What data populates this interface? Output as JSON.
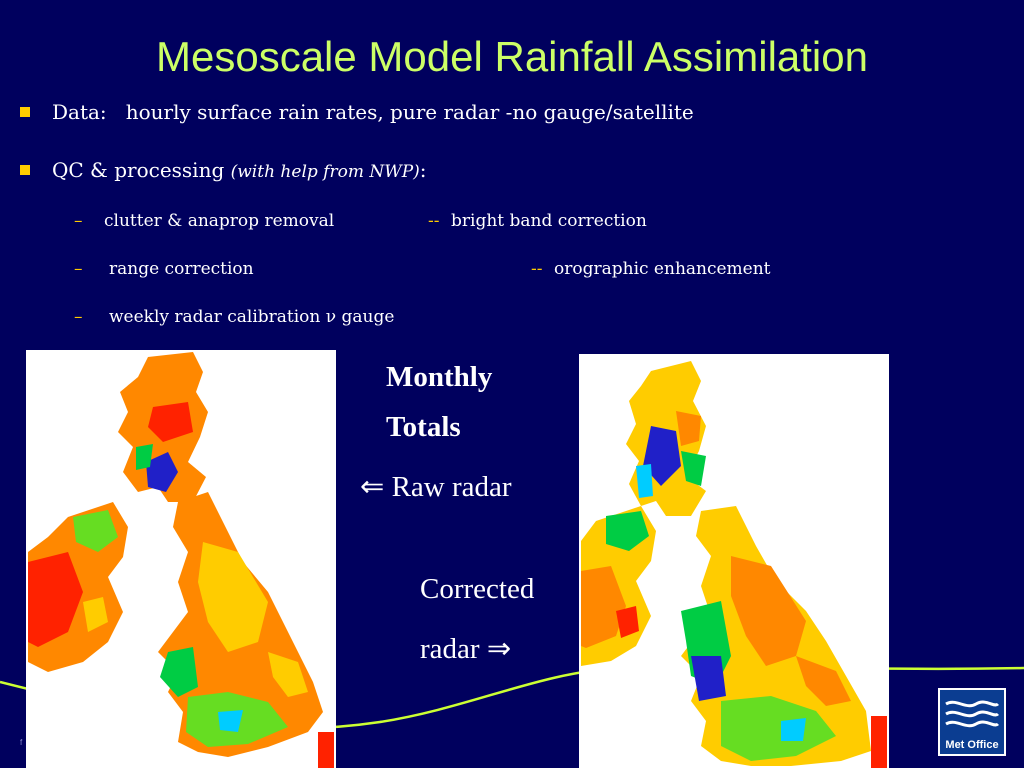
{
  "slide": {
    "title": "Mesoscale Model Rainfall Assimilation",
    "bullets": [
      {
        "label": "Data:",
        "text": "hourly surface rain rates, pure radar -no gauge/satellite"
      },
      {
        "text": "QC & processing ",
        "italic": "(with help from NWP)",
        "suffix": ":"
      }
    ],
    "sub_bullets": [
      {
        "dash": "–",
        "text": "clutter & anaprop removal",
        "dash2": "--",
        "text2": "bright band correction"
      },
      {
        "dash": "–",
        "text": "range correction",
        "dash2": "--",
        "text2": "orographic enhancement"
      },
      {
        "dash": "–",
        "text": "weekly radar calibration ν gauge"
      }
    ]
  },
  "labels": {
    "monthly_line1": "Monthly",
    "monthly_line2": "Totals",
    "raw_arrow": "⇐",
    "raw": "Raw radar",
    "corrected_line1": "Corrected",
    "corrected_line2": "radar",
    "corrected_arrow": "⇒"
  },
  "logo": {
    "text": "Met Office"
  },
  "footer": {
    "text": "f"
  },
  "colors": {
    "background": "#00005e",
    "title": "#ccff66",
    "bullet_marker": "#ffcc00",
    "swoosh": "#ccff33",
    "rain_scale": [
      "#2020c8",
      "#00ccff",
      "#00cc44",
      "#66dd22",
      "#ffff00",
      "#ffcc00",
      "#ff8800",
      "#ff2200"
    ]
  },
  "images": [
    {
      "name": "raw-radar-map",
      "depicts": "monthly rainfall total map of UK and Ireland from raw radar"
    },
    {
      "name": "corrected-radar-map",
      "depicts": "monthly rainfall total map of UK and Ireland from corrected radar"
    }
  ]
}
